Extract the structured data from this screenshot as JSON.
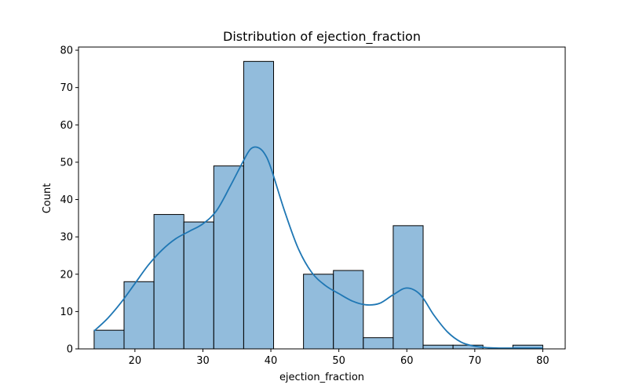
{
  "chart_data": {
    "type": "histogram",
    "title": "Distribution of ejection_fraction",
    "xlabel": "ejection_fraction",
    "ylabel": "Count",
    "xlim": [
      11.7,
      83.3
    ],
    "ylim": [
      0,
      80.85
    ],
    "xticks": [
      20,
      30,
      40,
      50,
      60,
      70,
      80
    ],
    "yticks": [
      0,
      10,
      20,
      30,
      40,
      50,
      60,
      70,
      80
    ],
    "bin_edges": [
      14.0,
      18.4,
      22.8,
      27.2,
      31.6,
      36.0,
      40.4,
      44.8,
      49.2,
      53.6,
      58.0,
      62.4,
      66.8,
      71.2,
      75.6,
      80.0
    ],
    "counts": [
      5,
      18,
      36,
      34,
      49,
      77,
      0,
      20,
      21,
      3,
      33,
      1,
      1,
      0,
      1
    ],
    "kde": {
      "x": [
        14,
        16,
        18,
        20,
        22,
        24,
        26,
        28,
        30,
        32,
        34,
        36,
        37,
        38,
        39,
        40,
        42,
        44,
        46,
        48,
        50,
        52,
        54,
        56,
        58,
        60,
        62,
        64,
        66,
        68,
        70,
        72,
        74,
        76,
        78,
        80
      ],
      "y": [
        4.8,
        8.2,
        12.5,
        17.5,
        22.5,
        26.5,
        29.5,
        31.5,
        33.5,
        37.0,
        43.5,
        50.5,
        53.5,
        54.0,
        52.5,
        48.5,
        37.0,
        27.0,
        20.5,
        17.0,
        14.8,
        12.8,
        11.8,
        12.2,
        14.5,
        16.3,
        14.5,
        9.0,
        4.5,
        1.8,
        0.7,
        0.3,
        0.2,
        0.2,
        0.2,
        0.2
      ]
    },
    "bar_color": "#7fb0d6",
    "line_color": "#1f77b4",
    "grid": false
  }
}
